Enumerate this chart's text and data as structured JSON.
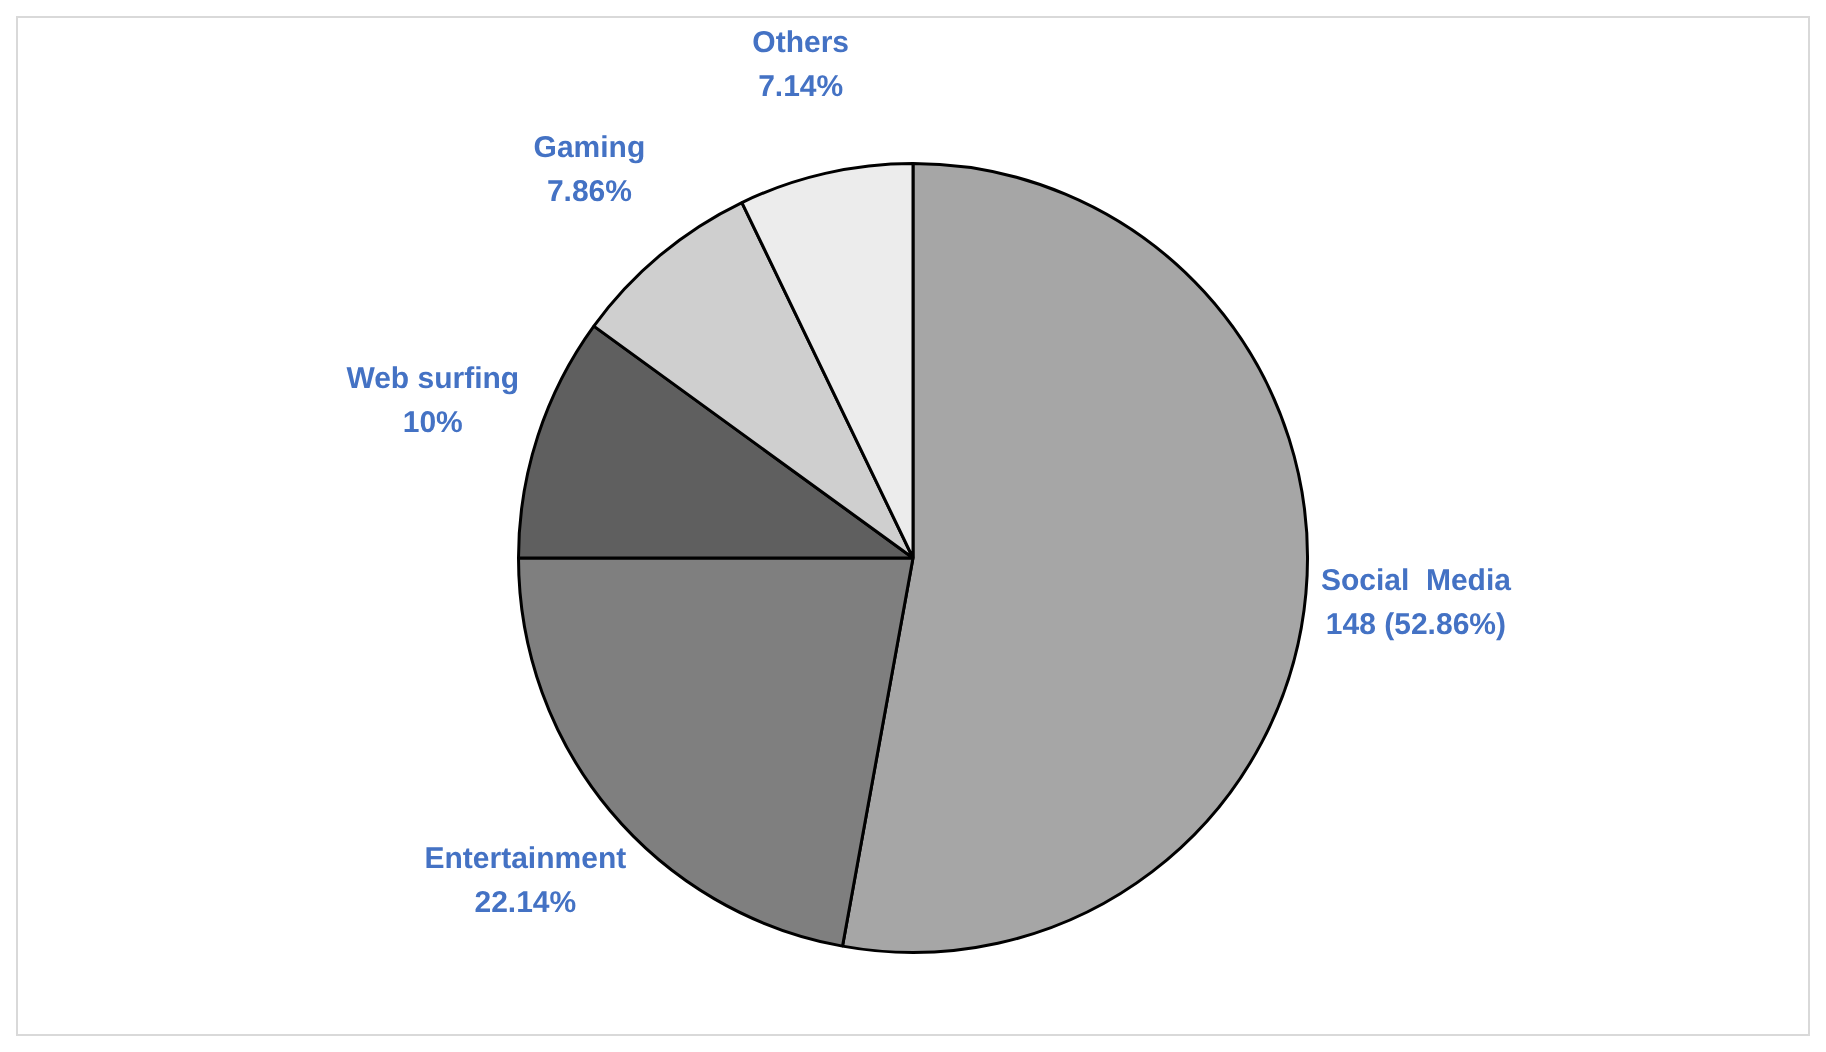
{
  "chart_data": {
    "type": "pie",
    "categories": [
      "Social  Media",
      "Entertainment",
      "Web surfing",
      "Gaming",
      "Others"
    ],
    "values": [
      52.86,
      22.14,
      10,
      7.86,
      7.14
    ],
    "colors": [
      "#a6a6a6",
      "#7f7f7f",
      "#5f5f5f",
      "#cfcfcf",
      "#ececec"
    ],
    "value_labels": [
      "148 (52.86%)",
      "22.14%",
      "10%",
      "7.86%",
      "7.14%"
    ],
    "legend": false
  }
}
